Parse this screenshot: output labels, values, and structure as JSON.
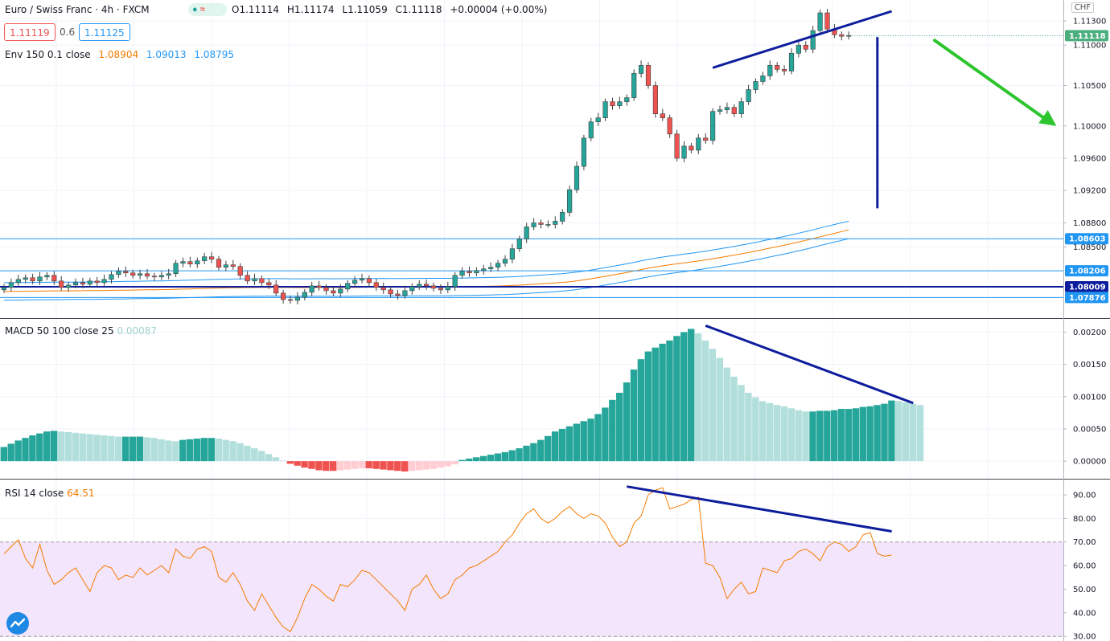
{
  "header": {
    "symbol": "Euro / Swiss Franc · 4h · FXCM",
    "ohlc": {
      "o": "O1.11114",
      "h": "H1.11174",
      "l": "L1.11059",
      "c": "C1.11118",
      "chg": "+0.00004 (+0.00%)"
    },
    "sell_price": "1.11119",
    "spread": "0.6",
    "buy_price": "1.11125",
    "currency": "CHF",
    "envelope": {
      "label": "Env 150 0.1 close",
      "mid": "1.08904",
      "upper": "1.09013",
      "lower": "1.08795"
    }
  },
  "colors": {
    "bull": "#26a69a",
    "bear": "#ef5350",
    "hist_rising": "#26a69a",
    "hist_falling": "#b2dfdb",
    "hist_neg_falling": "#ef5350",
    "hist_neg_rising": "#ffcdd2",
    "trendline": "#0d1d9c",
    "arrow": "#2dc52d",
    "env_band": "#2196f3",
    "env_mid": "#f57c00",
    "rsi_line": "#f57c00",
    "rsi_band": "#f3e5fb",
    "hline": "#2196f3",
    "hline_dark": "#0d1d9c"
  },
  "chart_data": [
    {
      "type": "candlestick",
      "title": "Euro / Swiss Franc · 4h · FXCM",
      "y_ticks": [
        "1.11300",
        "1.11000",
        "1.10500",
        "1.10000",
        "1.09600",
        "1.09200",
        "1.08800",
        "1.08500"
      ],
      "ylim": [
        1.0775,
        1.1143
      ],
      "last_price": "1.11118",
      "horizontal_levels": [
        {
          "value": 1.08603,
          "label": "1.08603"
        },
        {
          "value": 1.08206,
          "label": "1.08206"
        },
        {
          "value": 1.08009,
          "label": "1.08009"
        },
        {
          "value": 1.07876,
          "label": "1.07876"
        }
      ],
      "closes": [
        1.08,
        1.0806,
        1.081,
        1.0812,
        1.0808,
        1.0813,
        1.0815,
        1.0808,
        1.08,
        1.0803,
        1.0806,
        1.0804,
        1.0808,
        1.0806,
        1.081,
        1.0816,
        1.082,
        1.0818,
        1.0815,
        1.0817,
        1.0814,
        1.0813,
        1.0815,
        1.0817,
        1.083,
        1.0832,
        1.0829,
        1.0833,
        1.0838,
        1.0835,
        1.0825,
        1.0828,
        1.0826,
        1.0815,
        1.0808,
        1.0811,
        1.0806,
        1.0803,
        1.0793,
        1.0785,
        1.0784,
        1.0788,
        1.0794,
        1.0802,
        1.08,
        1.0796,
        1.0793,
        1.0798,
        1.0805,
        1.0809,
        1.0811,
        1.0806,
        1.08,
        1.0797,
        1.0792,
        1.079,
        1.0796,
        1.0801,
        1.0804,
        1.0802,
        1.0799,
        1.0797,
        1.0801,
        1.0815,
        1.082,
        1.0818,
        1.0821,
        1.0823,
        1.0825,
        1.083,
        1.0835,
        1.0848,
        1.086,
        1.0875,
        1.088,
        1.0878,
        1.0878,
        1.0882,
        1.0893,
        1.0921,
        1.095,
        1.0985,
        1.1005,
        1.101,
        1.103,
        1.1025,
        1.103,
        1.1035,
        1.1065,
        1.1075,
        1.105,
        1.1015,
        1.101,
        1.099,
        1.096,
        1.0975,
        1.097,
        1.0985,
        1.0982,
        1.1018,
        1.102,
        1.1023,
        1.1015,
        1.103,
        1.1045,
        1.1055,
        1.1062,
        1.1075,
        1.107,
        1.1068,
        1.109,
        1.11,
        1.1095,
        1.1118,
        1.114,
        1.112,
        1.1113,
        1.1111,
        1.1112
      ]
    },
    {
      "type": "bar",
      "title": "MACD 50 100 close 25",
      "last_value": "0.00087",
      "y_ticks": [
        "0.00200",
        "0.00150",
        "0.00100",
        "0.00050",
        "0.00000"
      ],
      "ylim": [
        -0.00021,
        0.00213
      ],
      "values": [
        0.00022,
        0.00027,
        0.00032,
        0.00036,
        0.0004,
        0.00043,
        0.00046,
        0.00047,
        0.00046,
        0.00045,
        0.00044,
        0.00043,
        0.00042,
        0.00041,
        0.0004,
        0.00039,
        0.00038,
        0.00038,
        0.00038,
        0.00038,
        0.00037,
        0.00036,
        0.00034,
        0.00032,
        0.00031,
        0.00033,
        0.00034,
        0.00035,
        0.00036,
        0.00036,
        0.00035,
        0.00033,
        0.00031,
        0.00028,
        0.00024,
        0.0002,
        0.00016,
        0.00011,
        6e-05,
        1e-05,
        -4e-05,
        -7e-05,
        -0.0001,
        -0.00012,
        -0.00014,
        -0.00015,
        -0.00015,
        -0.00014,
        -0.00013,
        -0.00012,
        -0.00011,
        -0.00011,
        -0.00012,
        -0.00013,
        -0.00014,
        -0.00015,
        -0.00016,
        -0.00015,
        -0.00014,
        -0.00013,
        -0.00012,
        -0.0001,
        -8e-05,
        -5e-05,
        2e-05,
        4e-05,
        6e-05,
        8e-05,
        0.0001,
        0.00012,
        0.00014,
        0.00017,
        0.0002,
        0.00024,
        0.00028,
        0.00033,
        0.00039,
        0.00046,
        0.0005,
        0.00054,
        0.00058,
        0.00062,
        0.00066,
        0.00073,
        0.00083,
        0.00095,
        0.00106,
        0.00122,
        0.00142,
        0.00158,
        0.0017,
        0.00176,
        0.00182,
        0.00187,
        0.00194,
        0.002,
        0.00205,
        0.00198,
        0.00187,
        0.00174,
        0.0016,
        0.00145,
        0.00131,
        0.00118,
        0.00106,
        0.00099,
        0.00093,
        0.0009,
        0.00087,
        0.00085,
        0.00082,
        0.00079,
        0.00077,
        0.00077,
        0.00078,
        0.00078,
        0.00079,
        0.00081,
        0.00081,
        0.00082,
        0.00084,
        0.00085,
        0.00087,
        0.00089,
        0.00094,
        0.00093,
        0.00091,
        0.00089,
        0.00087
      ]
    },
    {
      "type": "line",
      "title": "RSI 14 close",
      "last_value": "64.51",
      "y_ticks": [
        "90.00",
        "80.00",
        "70.00",
        "60.00",
        "50.00",
        "40.00",
        "30.00"
      ],
      "ylim": [
        29.4,
        93.4
      ],
      "band": [
        30,
        70
      ],
      "values": [
        65,
        68,
        71,
        63,
        59,
        69,
        58,
        52,
        54,
        57,
        59,
        54,
        49,
        57,
        60,
        59,
        54,
        56,
        55,
        59,
        56,
        58,
        60,
        57,
        67,
        64,
        63,
        67,
        68,
        66,
        55,
        53,
        57,
        52,
        45,
        41,
        48,
        43,
        38,
        34,
        32,
        38,
        46,
        52,
        50,
        47,
        45,
        52,
        51,
        54,
        58,
        57,
        54,
        51,
        48,
        45,
        41,
        50,
        52,
        56,
        50,
        46,
        48,
        54,
        56,
        59,
        60,
        62,
        64,
        66,
        70,
        73,
        78,
        82,
        84,
        80,
        78,
        80,
        83,
        85,
        82,
        80,
        82,
        81,
        78,
        72,
        68,
        70,
        78,
        81,
        90,
        92,
        93,
        84,
        85,
        86,
        88,
        89,
        61,
        60,
        55,
        46,
        50,
        53,
        48,
        49,
        59,
        58,
        57,
        62,
        63,
        66,
        67,
        65,
        62,
        68,
        70,
        69,
        66,
        68,
        73,
        74,
        65,
        64,
        64.5
      ]
    },
    {
      "type": "annotations",
      "lines": [
        {
          "pane": "price",
          "from": [
            99,
            1.1072
          ],
          "to": [
            124,
            1.1142
          ]
        },
        {
          "pane": "price",
          "from": [
            122,
            1.111
          ],
          "to": [
            122,
            1.0898
          ]
        },
        {
          "pane": "macd",
          "from": [
            98,
            0.0021
          ],
          "to": [
            127,
            0.0009
          ]
        },
        {
          "pane": "rsi",
          "from": [
            87,
            93.5
          ],
          "to": [
            124,
            74.5
          ]
        }
      ],
      "arrow": {
        "from": [
          130,
          1.1106
        ],
        "to": [
          147,
          1.1
        ]
      }
    }
  ]
}
